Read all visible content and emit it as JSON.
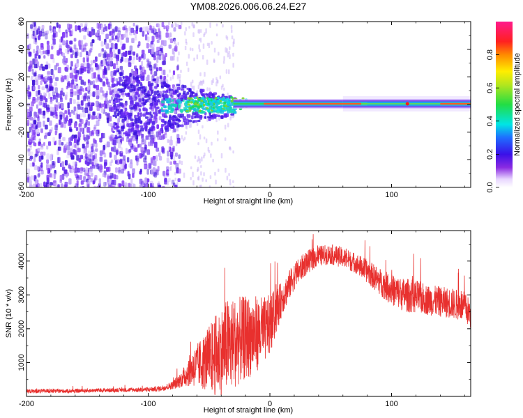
{
  "colors": {
    "line": "#e8302e",
    "frame": "#000000",
    "band_core": "#ff2b2b",
    "background": "#ffffff"
  },
  "chart_data": [
    {
      "type": "heatmap",
      "title": "YM08.2026.006.06.24.E27",
      "xlabel": "Height of straight line (km)",
      "ylabel": "Frequency (Hz)",
      "xlim": [
        -200,
        165
      ],
      "ylim": [
        -60,
        60
      ],
      "xticks": [
        -200,
        -100,
        0,
        100
      ],
      "yticks": [
        -60,
        -40,
        -20,
        0,
        20,
        40,
        60
      ],
      "colorbar": {
        "label": "Normalized spectral amplitude",
        "range": [
          0.0,
          1.0
        ],
        "ticks": [
          0.0,
          0.2,
          0.4,
          0.6,
          0.8
        ],
        "colormap": "rainbow (white-violet-blue-cyan-green-yellow-red-magenta)"
      },
      "description_points": [
        {
          "height_km": -200,
          "state": "diffuse violet noise, amplitude ~0.1-0.2, spread over full band"
        },
        {
          "height_km": -80,
          "state": "noise fades, energy concentrates near 0 Hz"
        },
        {
          "height_km": -50,
          "state": "cyan-green patches around 0-5 Hz, amplitude ~0.3-0.5"
        },
        {
          "height_km": 0,
          "state": "narrow band at ~1 Hz, amplitude ~0.9-1.0"
        },
        {
          "height_km": 100,
          "state": "band at ~0 Hz with dip near 100-115 km, amplitude ~0.3-0.6"
        },
        {
          "height_km": 165,
          "state": "band continues near 0 Hz, amplitude ~0.9"
        }
      ]
    },
    {
      "type": "line",
      "xlabel": "Height of straight line (km)",
      "ylabel": "SNR (10 * v/v)",
      "xlim": [
        -200,
        165
      ],
      "ylim": [
        0,
        4900
      ],
      "xticks": [
        -200,
        -100,
        0,
        100
      ],
      "yticks": [
        1000,
        2000,
        3000,
        4000
      ],
      "series": [
        {
          "name": "SNR",
          "x": [
            -200,
            -180,
            -160,
            -140,
            -120,
            -100,
            -90,
            -80,
            -72,
            -65,
            -55,
            -45,
            -35,
            -25,
            -15,
            -5,
            0,
            10,
            20,
            30,
            40,
            50,
            60,
            70,
            80,
            90,
            100,
            110,
            120,
            130,
            140,
            150,
            160,
            165
          ],
          "base": [
            150,
            160,
            160,
            180,
            190,
            200,
            230,
            330,
            520,
            800,
            1000,
            1200,
            1500,
            1650,
            1800,
            1950,
            2100,
            2900,
            3550,
            3950,
            4150,
            4200,
            4100,
            3950,
            3700,
            3400,
            3150,
            3000,
            2950,
            2850,
            2800,
            2750,
            2650,
            2400
          ],
          "amp": [
            60,
            60,
            60,
            60,
            60,
            70,
            80,
            120,
            250,
            500,
            800,
            1200,
            1400,
            1300,
            1200,
            1000,
            900,
            500,
            400,
            350,
            300,
            300,
            300,
            300,
            350,
            400,
            450,
            500,
            500,
            450,
            450,
            450,
            450,
            450
          ]
        }
      ]
    }
  ]
}
